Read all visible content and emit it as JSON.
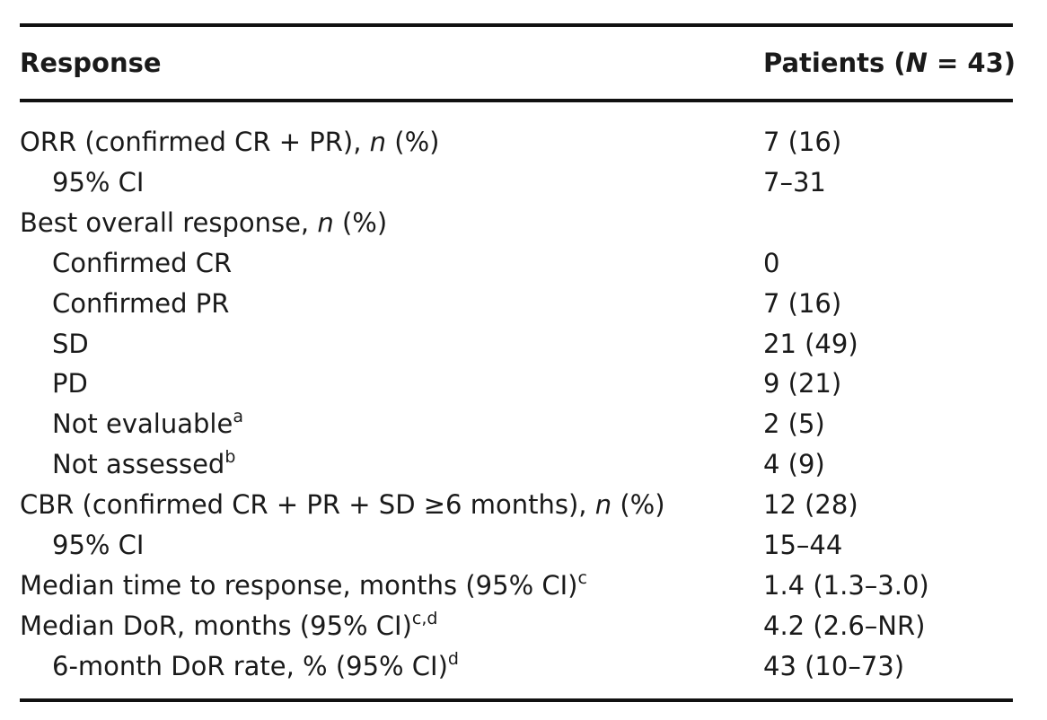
{
  "table": {
    "header": {
      "label": [
        {
          "text": "Response"
        }
      ],
      "value": [
        {
          "text": "Patients ("
        },
        {
          "text": "N",
          "style": "italic"
        },
        {
          "text": " = 43)"
        }
      ]
    },
    "rows": [
      {
        "label": [
          {
            "text": "ORR (confirmed CR + PR), "
          },
          {
            "text": "n",
            "style": "italic"
          },
          {
            "text": " (%)"
          }
        ],
        "value": "7 (16)"
      },
      {
        "indent": true,
        "label": [
          {
            "text": "95% CI"
          }
        ],
        "value": "7–31"
      },
      {
        "label": [
          {
            "text": "Best overall response, "
          },
          {
            "text": "n",
            "style": "italic"
          },
          {
            "text": " (%)"
          }
        ]
      },
      {
        "indent": true,
        "label": [
          {
            "text": "Confirmed CR"
          }
        ],
        "value": "0"
      },
      {
        "indent": true,
        "label": [
          {
            "text": "Confirmed PR"
          }
        ],
        "value": "7 (16)"
      },
      {
        "indent": true,
        "label": [
          {
            "text": "SD"
          }
        ],
        "value": "21 (49)"
      },
      {
        "indent": true,
        "label": [
          {
            "text": "PD"
          }
        ],
        "value": "9 (21)"
      },
      {
        "indent": true,
        "label": [
          {
            "text": "Not evaluable"
          },
          {
            "text": "a",
            "style": "sup"
          }
        ],
        "value": "2 (5)"
      },
      {
        "indent": true,
        "label": [
          {
            "text": "Not assessed"
          },
          {
            "text": "b",
            "style": "sup"
          }
        ],
        "value": "4 (9)"
      },
      {
        "label": [
          {
            "text": "CBR (confirmed CR + PR + SD ≥6 months), "
          },
          {
            "text": "n",
            "style": "italic"
          },
          {
            "text": " (%)"
          }
        ],
        "value": "12 (28)"
      },
      {
        "indent": true,
        "label": [
          {
            "text": "95% CI"
          }
        ],
        "value": "15–44"
      },
      {
        "label": [
          {
            "text": "Median time to response, months (95% CI)"
          },
          {
            "text": "c",
            "style": "sup"
          }
        ],
        "value": "1.4 (1.3–3.0)"
      },
      {
        "label": [
          {
            "text": "Median DoR, months (95% CI)"
          },
          {
            "text": "c,d",
            "style": "sup"
          }
        ],
        "value": "4.2 (2.6–NR)"
      },
      {
        "indent": true,
        "label": [
          {
            "text": "6-month DoR rate, % (95% CI)"
          },
          {
            "text": "d",
            "style": "sup"
          }
        ],
        "value": "43 (10–73)"
      }
    ]
  }
}
